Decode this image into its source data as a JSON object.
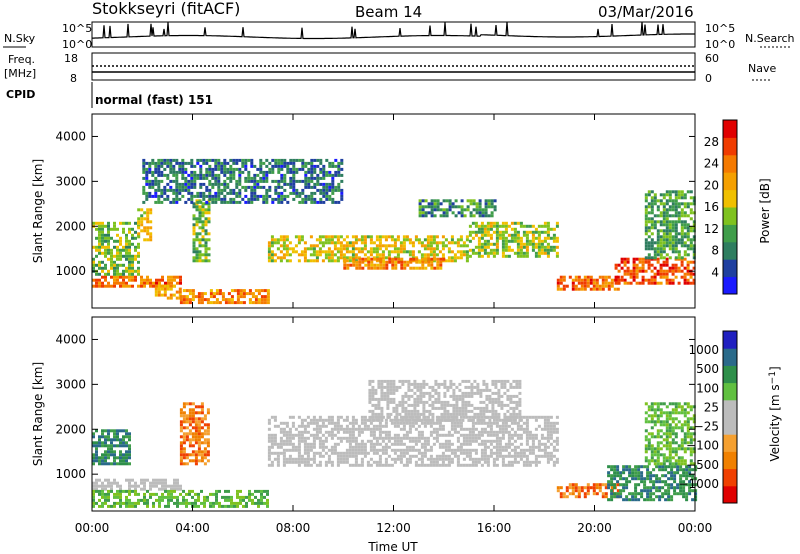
{
  "header": {
    "station": "Stokkseyri (fitACF)",
    "beam": "Beam 14",
    "date": "03/Mar/2016"
  },
  "strip_labels": {
    "nsky": "N.Sky",
    "nsky_top": "10^5",
    "nsky_bottom": "10^0",
    "nsearch": "N.Search",
    "nsearch_top": "10^5",
    "nsearch_bottom": "10^0",
    "freq_title": "Freq.",
    "freq_unit": "[MHz]",
    "freq_top": "18",
    "freq_bottom": "8",
    "nave": "Nave",
    "nave_top": "60",
    "nave_bottom": "0",
    "cpid": "CPID",
    "cpid_value": "normal (fast) 151"
  },
  "colors": {
    "power": [
      "#1a1aff",
      "#1f3fa0",
      "#2e7d5f",
      "#3f9d4a",
      "#7fc21f",
      "#f0c000",
      "#f5a000",
      "#f57a00",
      "#f03c00",
      "#e00000"
    ],
    "velocity": [
      "#e00000",
      "#f04000",
      "#f08000",
      "#f5a030",
      "#bcbcbc",
      "#bcbcbc",
      "#60c040",
      "#2e8f4a",
      "#2a6a8a",
      "#2020c0"
    ],
    "ground_scatter": "#bcbcbc"
  },
  "chart_data": [
    {
      "type": "heatmap",
      "title": "",
      "xlabel": "",
      "ylabel": "Slant Range [km]",
      "xlim": [
        "00:00",
        "00:00"
      ],
      "ylim": [
        180,
        4500
      ],
      "yticks": [
        1000,
        2000,
        3000,
        4000
      ],
      "x_tick_labels": [
        "00:00",
        "04:00",
        "08:00",
        "12:00",
        "16:00",
        "20:00",
        "00:00"
      ],
      "colorbar": {
        "label": "Power [dB]",
        "ticks": [
          "28",
          "24",
          "20",
          "16",
          "12",
          "8",
          "4"
        ],
        "range": [
          0,
          30
        ]
      },
      "regions": [
        {
          "hours": [
            0.0,
            3.5
          ],
          "range_km": [
            650,
            900
          ],
          "level": 24
        },
        {
          "hours": [
            0.0,
            1.8
          ],
          "range_km": [
            900,
            2100
          ],
          "level": 12
        },
        {
          "hours": [
            1.8,
            2.3
          ],
          "range_km": [
            1700,
            2400
          ],
          "level": 16
        },
        {
          "hours": [
            2.5,
            3.5
          ],
          "range_km": [
            400,
            700
          ],
          "level": 20
        },
        {
          "hours": [
            3.5,
            7.0
          ],
          "range_km": [
            300,
            600
          ],
          "level": 22
        },
        {
          "hours": [
            4.0,
            4.6
          ],
          "range_km": [
            1200,
            2600
          ],
          "level": 12
        },
        {
          "hours": [
            7.0,
            15.0
          ],
          "range_km": [
            1200,
            1800
          ],
          "level": 16
        },
        {
          "hours": [
            10.0,
            14.0
          ],
          "range_km": [
            1050,
            1300
          ],
          "level": 22
        },
        {
          "hours": [
            15.0,
            18.5
          ],
          "range_km": [
            1300,
            2100
          ],
          "level": 14
        },
        {
          "hours": [
            13.0,
            16.0
          ],
          "range_km": [
            2200,
            2600
          ],
          "level": 8
        },
        {
          "hours": [
            18.5,
            21.0
          ],
          "range_km": [
            600,
            900
          ],
          "level": 24
        },
        {
          "hours": [
            20.8,
            24.0
          ],
          "range_km": [
            700,
            1300
          ],
          "level": 26
        },
        {
          "hours": [
            22.0,
            24.0
          ],
          "range_km": [
            1300,
            2800
          ],
          "level": 10
        },
        {
          "hours": [
            2.0,
            10.0
          ],
          "range_km": [
            2500,
            3500
          ],
          "level": 6
        }
      ]
    },
    {
      "type": "heatmap",
      "title": "",
      "xlabel": "Time UT",
      "ylabel": "Slant Range [km]",
      "xlim": [
        "00:00",
        "00:00"
      ],
      "ylim": [
        180,
        4500
      ],
      "yticks": [
        1000,
        2000,
        3000,
        4000
      ],
      "x_tick_labels": [
        "00:00",
        "04:00",
        "08:00",
        "12:00",
        "16:00",
        "20:00",
        "00:00"
      ],
      "colorbar": {
        "label": "Velocity [m s^-1]",
        "ticks": [
          "1000",
          "500",
          "100",
          "25",
          "−25",
          "−100",
          "−500",
          "−1000"
        ]
      },
      "regions": [
        {
          "hours": [
            0.0,
            3.5
          ],
          "range_km": [
            650,
            900
          ],
          "class": "ground"
        },
        {
          "hours": [
            0.0,
            7.0
          ],
          "range_km": [
            250,
            650
          ],
          "class": "pos_small"
        },
        {
          "hours": [
            3.5,
            4.6
          ],
          "range_km": [
            1200,
            2600
          ],
          "class": "neg_mid"
        },
        {
          "hours": [
            0.0,
            1.5
          ],
          "range_km": [
            1200,
            2000
          ],
          "class": "pos_mid"
        },
        {
          "hours": [
            7.0,
            18.5
          ],
          "range_km": [
            1200,
            2300
          ],
          "class": "ground"
        },
        {
          "hours": [
            11.0,
            17.0
          ],
          "range_km": [
            2200,
            3100
          ],
          "class": "ground"
        },
        {
          "hours": [
            18.5,
            21.0
          ],
          "range_km": [
            500,
            800
          ],
          "class": "neg_mid"
        },
        {
          "hours": [
            20.5,
            24.0
          ],
          "range_km": [
            400,
            1200
          ],
          "class": "pos_mid"
        },
        {
          "hours": [
            22.0,
            24.0
          ],
          "range_km": [
            1200,
            2600
          ],
          "class": "pos_small"
        }
      ]
    }
  ]
}
